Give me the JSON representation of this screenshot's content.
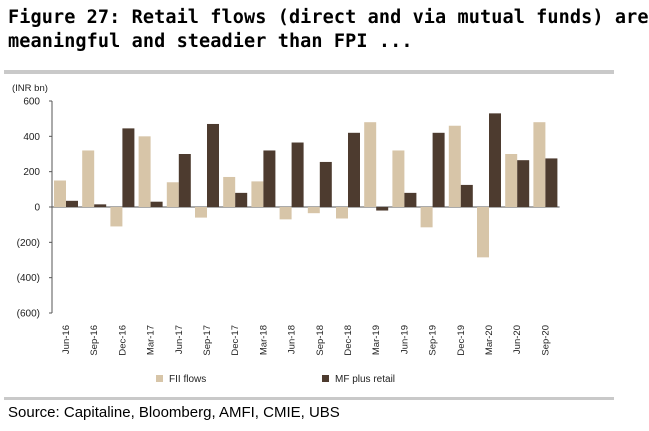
{
  "title_line1": "Figure 27: Retail flows (direct and via mutual funds) are",
  "title_line2": "meaningful and steadier than FPI ...",
  "source": "Source: Capitaline, Bloomberg, AMFI, CMIE, UBS",
  "colors": {
    "fii": "#d7c5a8",
    "mf": "#4d3b2f",
    "axis": "#555555",
    "rule": "#c9c9c9"
  },
  "chart_data": {
    "type": "bar",
    "unit_label": "(INR bn)",
    "ylim": [
      -600,
      600
    ],
    "yticks": [
      600,
      400,
      200,
      0,
      -200,
      -400,
      -600
    ],
    "ytick_labels": [
      "600",
      "400",
      "200",
      "0",
      "(200)",
      "(400)",
      "(600)"
    ],
    "categories": [
      "Jun-16",
      "Sep-16",
      "Dec-16",
      "Mar-17",
      "Jun-17",
      "Sep-17",
      "Dec-17",
      "Mar-18",
      "Jun-18",
      "Sep-18",
      "Dec-18",
      "Mar-19",
      "Jun-19",
      "Sep-19",
      "Dec-19",
      "Mar-20",
      "Jun-20",
      "Sep-20"
    ],
    "series": [
      {
        "name": "FII flows",
        "values": [
          150,
          320,
          -110,
          400,
          140,
          -60,
          170,
          145,
          -70,
          -35,
          -65,
          480,
          320,
          -115,
          460,
          -285,
          300,
          480
        ]
      },
      {
        "name": "MF plus retail",
        "values": [
          35,
          15,
          445,
          30,
          300,
          470,
          80,
          320,
          365,
          255,
          420,
          -20,
          80,
          420,
          125,
          530,
          265,
          275
        ]
      }
    ],
    "legend_position": "bottom",
    "grid": false
  }
}
